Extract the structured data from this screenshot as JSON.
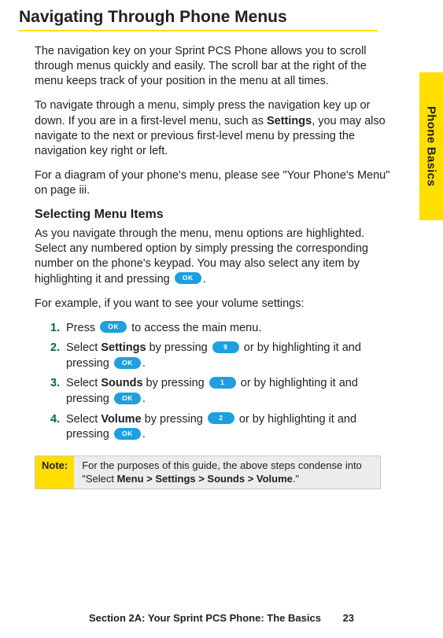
{
  "title": "Navigating Through Phone Menus",
  "sideTab": "Phone Basics",
  "paras": {
    "p1": "The navigation key on your Sprint PCS Phone allows you to scroll through menus quickly and easily. The scroll bar at the right of the menu keeps track of your position in the menu at all times.",
    "p2a": "To navigate through a menu, simply press the navigation key up or down. If you are in a first-level menu, such as ",
    "p2b": "Settings",
    "p2c": ", you may also navigate to the next or previous first-level menu by pressing the navigation key right or left.",
    "p3": "For a diagram of your phone's menu, please see \"Your Phone's Menu\" on page iii.",
    "p4": "As you navigate through the menu, menu options are highlighted. Select any numbered option by simply pressing the corresponding number on the phone's keypad. You may also select any item by highlighting it and pressing ",
    "p5": "For example, if you want to see your volume settings:"
  },
  "subhead": "Selecting Menu Items",
  "buttons": {
    "ok": "OK",
    "nine": "9",
    "one": "1",
    "two": "2"
  },
  "steps": {
    "s1": {
      "num": "1.",
      "a": "Press ",
      "b": " to access the main menu."
    },
    "s2": {
      "num": "2.",
      "a": "Select ",
      "bold": "Settings",
      "b": " by pressing ",
      "c": " or by highlighting it and pressing ",
      "d": "."
    },
    "s3": {
      "num": "3.",
      "a": "Select ",
      "bold": "Sounds",
      "b": " by pressing ",
      "c": " or by highlighting it and pressing ",
      "d": "."
    },
    "s4": {
      "num": "4.",
      "a": "Select ",
      "bold": "Volume",
      "b": " by pressing ",
      "c": " or by highlighting it and pressing ",
      "d": "."
    }
  },
  "note": {
    "label": "Note:",
    "a": "For the purposes of this guide, the above steps condense into \"Select ",
    "bold": "Menu > Settings > Sounds > Volume",
    "b": ".\""
  },
  "footer": {
    "text": "Section 2A: Your Sprint PCS Phone: The Basics",
    "page": "23"
  },
  "colors": {
    "accent": "#ffde00",
    "button": "#1ea0e0",
    "stepnum": "#006a3f"
  }
}
